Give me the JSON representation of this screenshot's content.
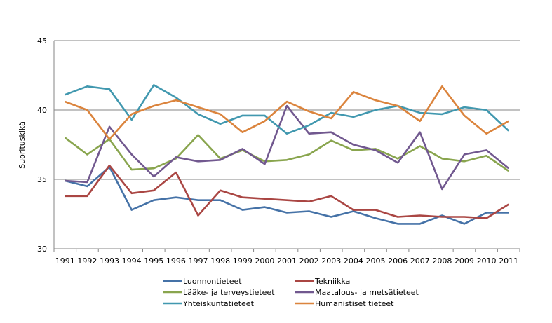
{
  "chart_data": {
    "type": "line",
    "title": "",
    "xlabel": "",
    "ylabel": "Suorituskikä",
    "ylim": [
      30,
      45
    ],
    "yticks": [
      30,
      35,
      40,
      45
    ],
    "grid": true,
    "legend_position": "bottom",
    "categories": [
      "1991",
      "1992",
      "1993",
      "1994",
      "1995",
      "1996",
      "1997",
      "1998",
      "1999",
      "2000",
      "2001",
      "2002",
      "2003",
      "2004",
      "2005",
      "2006",
      "2007",
      "2008",
      "2009",
      "2010",
      "2011"
    ],
    "series": [
      {
        "name": "Luonnontieteet",
        "color": "#4572A7",
        "values": [
          34.9,
          34.5,
          35.9,
          32.8,
          33.5,
          33.7,
          33.5,
          33.5,
          32.8,
          33.0,
          32.6,
          32.7,
          32.3,
          32.7,
          32.2,
          31.8,
          31.8,
          32.4,
          31.8,
          32.6,
          32.6
        ]
      },
      {
        "name": "Tekniikka",
        "color": "#AA4643",
        "values": [
          33.8,
          33.8,
          36.0,
          34.0,
          34.2,
          35.5,
          32.4,
          34.2,
          33.7,
          33.6,
          33.5,
          33.4,
          33.8,
          32.8,
          32.8,
          32.3,
          32.4,
          32.3,
          32.3,
          32.2,
          33.2
        ]
      },
      {
        "name": "Lääke- ja terveystieteet",
        "color": "#89A54E",
        "values": [
          38.0,
          36.8,
          37.9,
          35.7,
          35.8,
          36.5,
          38.2,
          36.5,
          37.1,
          36.3,
          36.4,
          36.8,
          37.8,
          37.1,
          37.2,
          36.5,
          37.4,
          36.5,
          36.3,
          36.7,
          35.6
        ]
      },
      {
        "name": "Maatalous- ja metsätieteet",
        "color": "#71588F",
        "values": [
          34.9,
          34.8,
          38.8,
          36.8,
          35.2,
          36.6,
          36.3,
          36.4,
          37.2,
          36.1,
          40.3,
          38.3,
          38.4,
          37.5,
          37.1,
          36.2,
          38.4,
          34.3,
          36.8,
          37.1,
          35.8
        ]
      },
      {
        "name": "Yhteiskuntatieteet",
        "color": "#4198AF",
        "values": [
          41.1,
          41.7,
          41.5,
          39.3,
          41.8,
          40.9,
          39.7,
          39.0,
          39.6,
          39.6,
          38.3,
          38.9,
          39.8,
          39.5,
          40.0,
          40.3,
          39.8,
          39.7,
          40.2,
          40.0,
          38.5
        ]
      },
      {
        "name": "Humanistiset tieteet",
        "color": "#DB843D",
        "values": [
          40.6,
          40.0,
          37.9,
          39.7,
          40.3,
          40.7,
          40.2,
          39.7,
          38.4,
          39.2,
          40.6,
          39.9,
          39.4,
          41.3,
          40.7,
          40.3,
          39.2,
          41.7,
          39.6,
          38.3,
          39.2
        ]
      }
    ]
  }
}
